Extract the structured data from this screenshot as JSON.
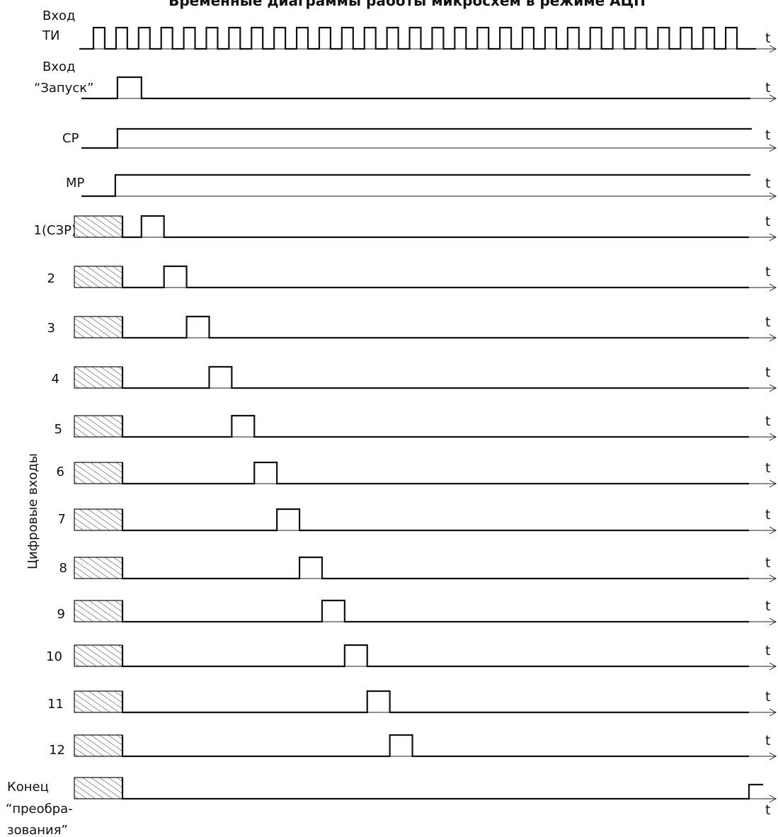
{
  "title": "Временные диаграммы работы микросхем в режиме АЦП",
  "time_label": "t",
  "digital_group_label": "Цифровые входы",
  "signals": {
    "ti": {
      "label_line1": "Вход",
      "label_line2": "ТИ",
      "pulse_count": 29
    },
    "start": {
      "label_line1": "Вход",
      "label_line2": "“Запуск”"
    },
    "sr": {
      "label": "СР"
    },
    "mr": {
      "label": "МР"
    },
    "bits": [
      {
        "label": "1(СЗР)",
        "high_from_clock": 2
      },
      {
        "label": "2",
        "high_from_clock": 3
      },
      {
        "label": "3",
        "high_from_clock": 4
      },
      {
        "label": "4",
        "high_from_clock": 5
      },
      {
        "label": "5",
        "high_from_clock": 6
      },
      {
        "label": "6",
        "high_from_clock": 7
      },
      {
        "label": "7",
        "high_from_clock": 8
      },
      {
        "label": "8",
        "high_from_clock": 9
      },
      {
        "label": "9",
        "high_from_clock": 10
      },
      {
        "label": "10",
        "high_from_clock": 11
      },
      {
        "label": "11",
        "high_from_clock": 12
      },
      {
        "label": "12",
        "high_from_clock": 13
      }
    ],
    "eoc": {
      "label_line1": "Конец",
      "label_line2": "“преобра-",
      "label_line3": "зования”"
    }
  }
}
